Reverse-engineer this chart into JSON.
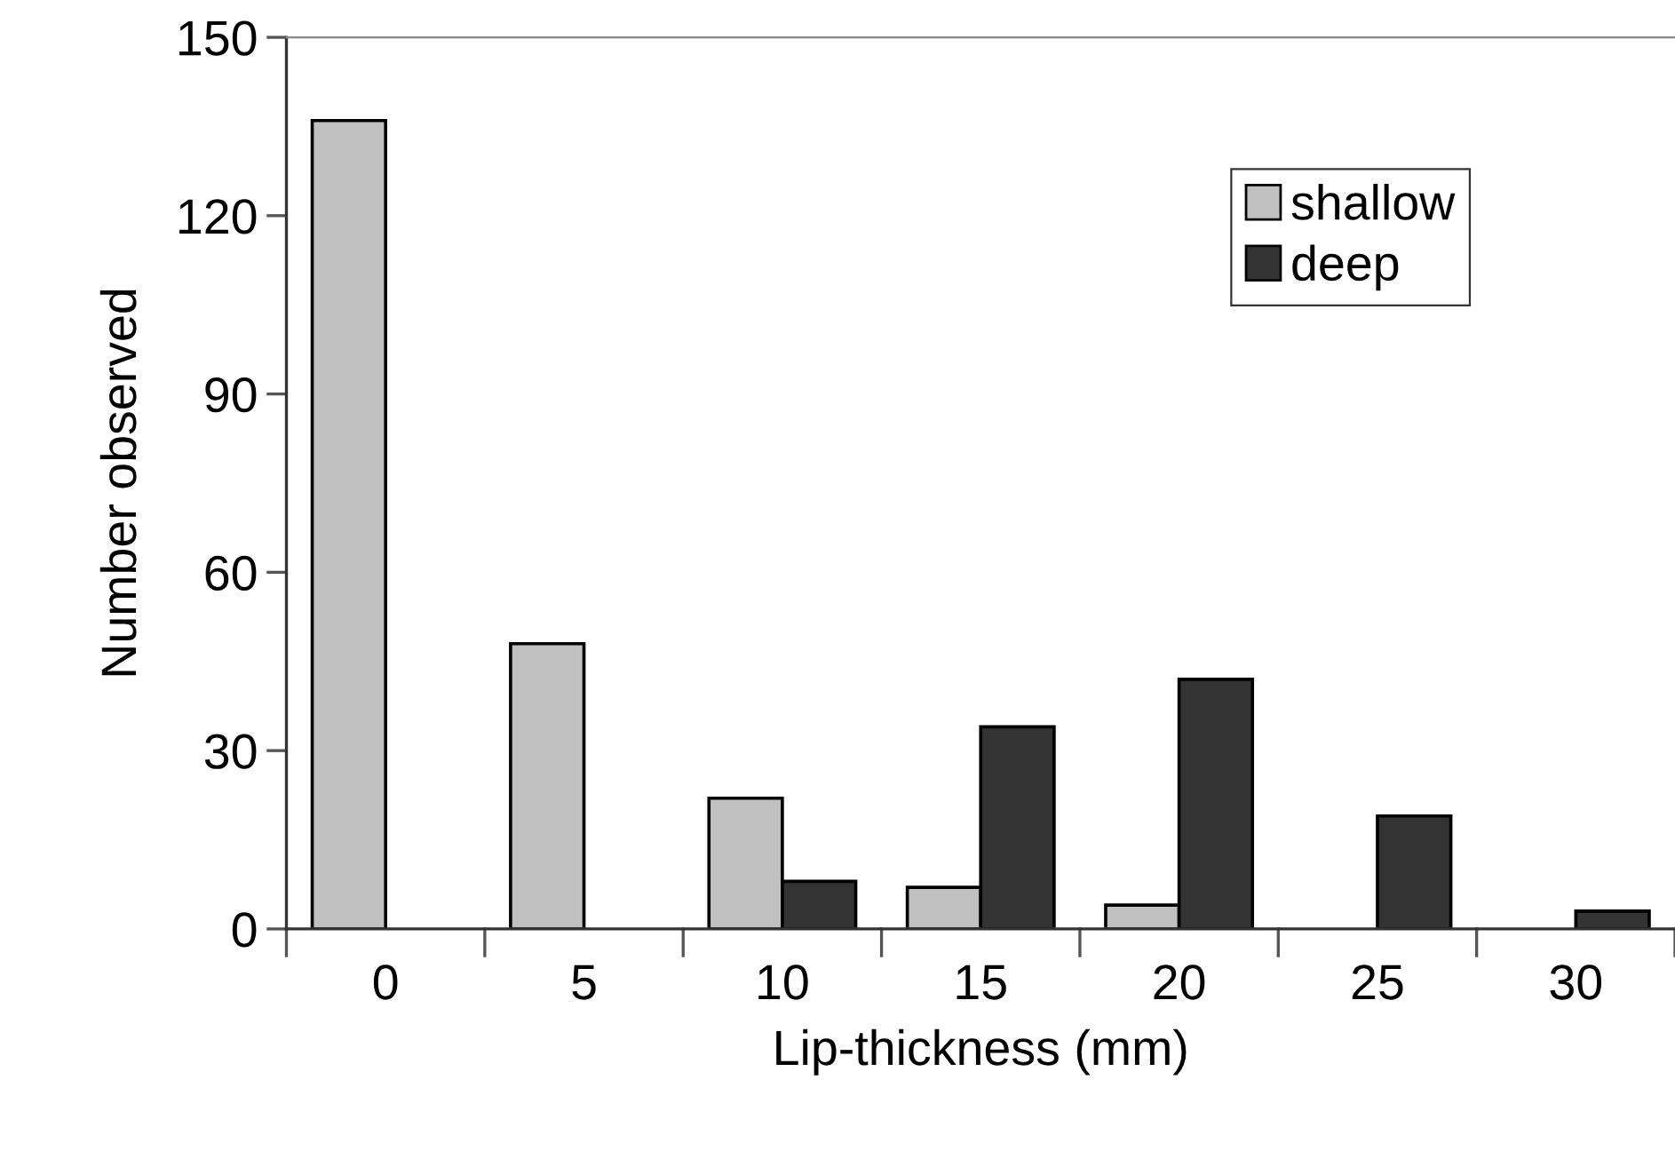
{
  "chart_data": {
    "type": "bar",
    "xlabel": "Lip-thickness (mm)",
    "ylabel": "Number observed",
    "categories": [
      "0",
      "5",
      "10",
      "15",
      "20",
      "25",
      "30"
    ],
    "series": [
      {
        "name": "shallow",
        "color": "#c0c0c0",
        "values": [
          136,
          48,
          22,
          7,
          4,
          null,
          null
        ]
      },
      {
        "name": "deep",
        "color": "#333333",
        "values": [
          null,
          null,
          8,
          34,
          42,
          19,
          3
        ]
      }
    ],
    "ylim": [
      0,
      150
    ],
    "yticks": [
      0,
      30,
      60,
      90,
      120,
      150
    ],
    "grid": false,
    "legend": "top right"
  }
}
